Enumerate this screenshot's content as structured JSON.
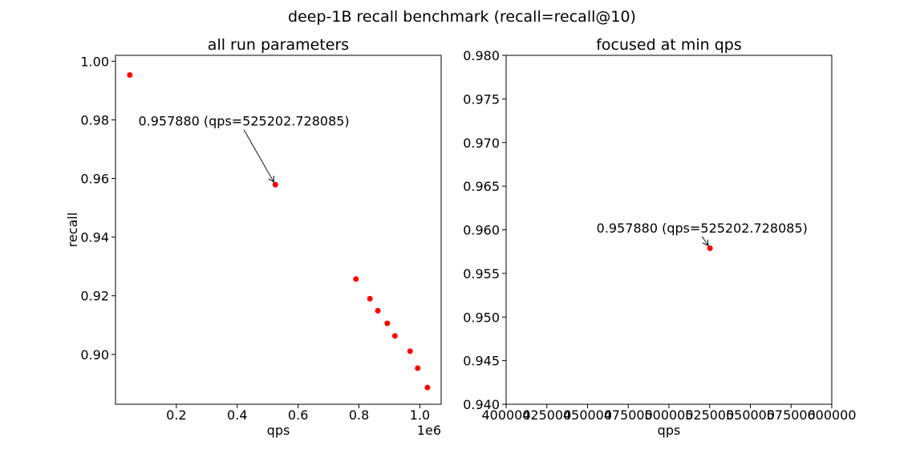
{
  "figure": {
    "suptitle": "deep-1B recall benchmark (recall=recall@10)"
  },
  "chart_data": [
    {
      "type": "scatter",
      "title": "all run parameters",
      "xlabel": "qps",
      "ylabel": "recall",
      "x_offset_label": "1e6",
      "xlim": [
        0.0,
        1.07
      ],
      "ylim": [
        0.883,
        1.002
      ],
      "x_ticks": [
        0.2,
        0.4,
        0.6,
        0.8,
        1.0
      ],
      "x_tick_labels": [
        "0.2",
        "0.4",
        "0.6",
        "0.8",
        "1.0"
      ],
      "y_ticks": [
        0.9,
        0.92,
        0.94,
        0.96,
        0.98,
        1.0
      ],
      "y_tick_labels": [
        "0.90",
        "0.92",
        "0.94",
        "0.96",
        "0.98",
        "1.00"
      ],
      "marker_color": "#ff0000",
      "points": [
        {
          "x": 0.047,
          "y": 0.9953
        },
        {
          "x": 0.5252,
          "y": 0.95788
        },
        {
          "x": 0.79,
          "y": 0.9257
        },
        {
          "x": 0.836,
          "y": 0.919
        },
        {
          "x": 0.862,
          "y": 0.9149
        },
        {
          "x": 0.893,
          "y": 0.9106
        },
        {
          "x": 0.918,
          "y": 0.9063
        },
        {
          "x": 0.968,
          "y": 0.9011
        },
        {
          "x": 0.993,
          "y": 0.8953
        },
        {
          "x": 1.025,
          "y": 0.8887
        }
      ],
      "annotation": {
        "text": "0.957880 (qps=525202.728085)",
        "target": {
          "x": 0.5252,
          "y": 0.95788
        },
        "text_pos": {
          "x": 0.075,
          "y": 0.978
        }
      }
    },
    {
      "type": "scatter",
      "title": "focused at min qps",
      "xlabel": "qps",
      "ylabel": "",
      "xlim": [
        400000,
        600000
      ],
      "ylim": [
        0.94,
        0.98
      ],
      "x_ticks": [
        400000,
        425000,
        450000,
        475000,
        500000,
        525000,
        550000,
        575000,
        600000
      ],
      "x_tick_labels": [
        "400000",
        "425000",
        "450000",
        "475000",
        "500000",
        "525000",
        "550000",
        "575000",
        "600000"
      ],
      "y_ticks": [
        0.94,
        0.945,
        0.95,
        0.955,
        0.96,
        0.965,
        0.97,
        0.975,
        0.98
      ],
      "y_tick_labels": [
        "0.940",
        "0.945",
        "0.950",
        "0.955",
        "0.960",
        "0.965",
        "0.970",
        "0.975",
        "0.980"
      ],
      "marker_color": "#ff0000",
      "points": [
        {
          "x": 525202.728085,
          "y": 0.95788
        }
      ],
      "annotation": {
        "text": "0.957880 (qps=525202.728085)",
        "target": {
          "x": 525202.728085,
          "y": 0.95788
        },
        "text_pos": {
          "x": 455500,
          "y": 0.9597
        }
      }
    }
  ]
}
